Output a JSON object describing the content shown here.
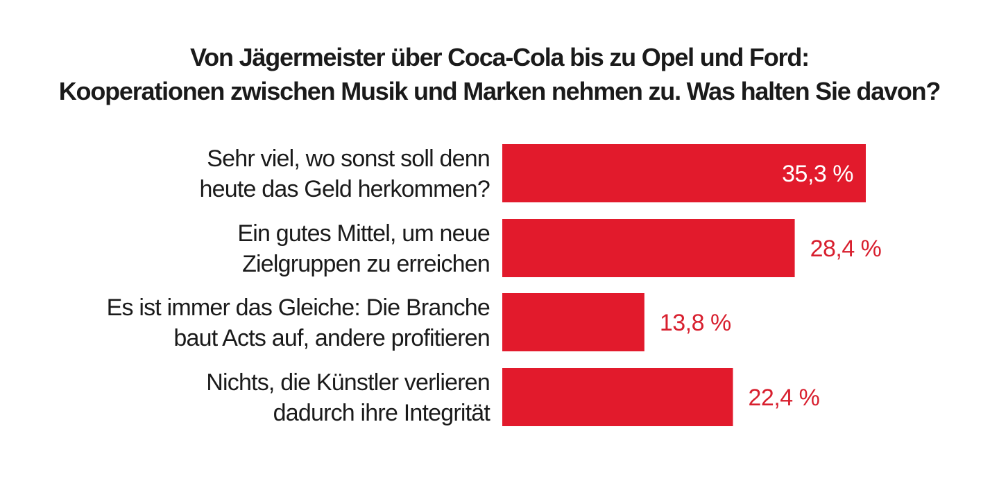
{
  "chart_data": {
    "type": "bar",
    "orientation": "horizontal",
    "title": [
      "Von Jägermeister über Coca-Cola bis zu Opel und Ford:",
      "Kooperationen zwischen Musik und Marken nehmen zu. Was halten Sie davon?"
    ],
    "categories": [
      [
        "Sehr viel, wo sonst soll denn",
        "heute das Geld herkommen?"
      ],
      [
        "Ein gutes Mittel, um neue",
        "Zielgruppen zu erreichen"
      ],
      [
        "Es ist immer das Gleiche: Die Branche",
        "baut Acts auf, andere profitieren"
      ],
      [
        "Nichts, die Künstler verlieren",
        "dadurch ihre Integrität"
      ]
    ],
    "values": [
      35.3,
      28.4,
      13.8,
      22.4
    ],
    "value_labels": [
      "35,3 %",
      "28,4 %",
      "13,8 %",
      "22,4 %"
    ],
    "value_label_position": [
      "inside",
      "outside",
      "outside",
      "outside"
    ],
    "xlim": [
      0,
      35.3
    ],
    "grid": false,
    "legend": "none",
    "colors": {
      "bar": "#e21a2c",
      "label_outside": "#d81f2e",
      "label_inside": "#ffffff",
      "text": "#1a1a1a",
      "background": "#ffffff"
    }
  }
}
